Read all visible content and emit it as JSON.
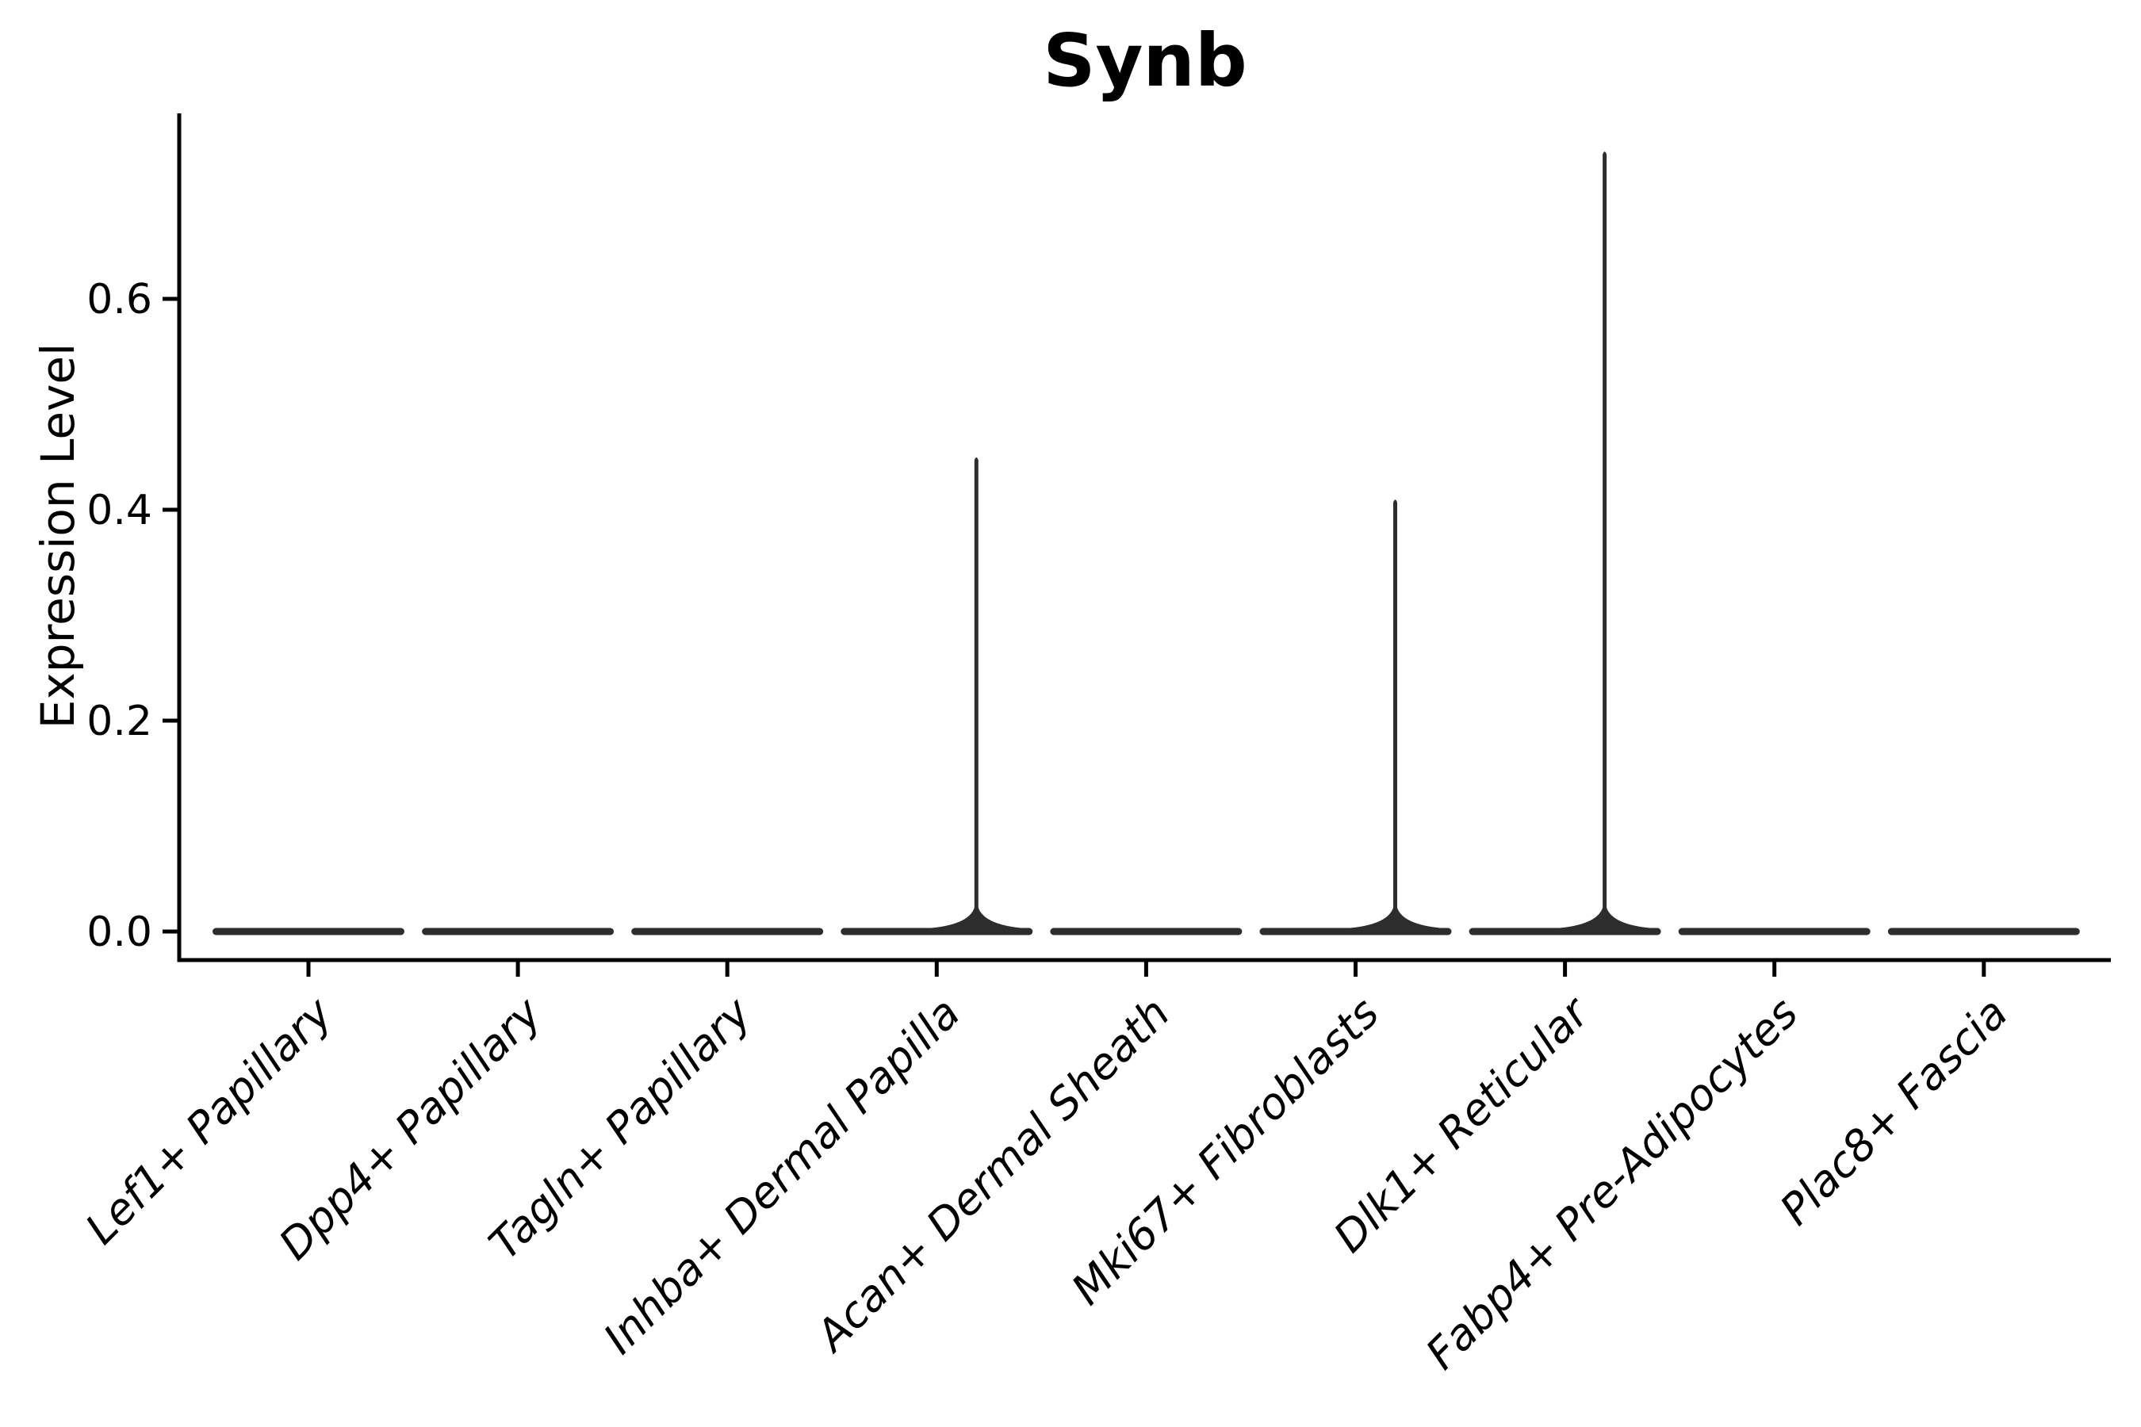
{
  "colors": {
    "background": "#ffffff",
    "violin": "#2d2d2d",
    "axis": "#000000",
    "text": "#000000"
  },
  "chart_data": {
    "type": "violin",
    "title": "Synb",
    "xlabel": "",
    "ylabel": "Expression Level",
    "categories": [
      "Lef1+ Papillary",
      "Dpp4+ Papillary",
      "Tagln+ Papillary",
      "Inhba+ Dermal Papilla",
      "Acan+ Dermal Sheath",
      "Mki67+ Fibroblasts",
      "Dlk1+ Reticular",
      "Fabp4+ Pre-Adipocytes",
      "Plac8+ Fascia"
    ],
    "yticks": [
      0.0,
      0.2,
      0.4,
      0.6
    ],
    "ylim": [
      0,
      0.78
    ],
    "grid": false,
    "legend": false,
    "violins": [
      {
        "category": "Lef1+ Papillary",
        "max_expression": 0
      },
      {
        "category": "Dpp4+ Papillary",
        "max_expression": 0
      },
      {
        "category": "Tagln+ Papillary",
        "max_expression": 0
      },
      {
        "category": "Inhba+ Dermal Papilla",
        "max_expression": 0.45
      },
      {
        "category": "Acan+ Dermal Sheath",
        "max_expression": 0
      },
      {
        "category": "Mki67+ Fibroblasts",
        "max_expression": 0.41
      },
      {
        "category": "Dlk1+ Reticular",
        "max_expression": 0.74
      },
      {
        "category": "Fabp4+ Pre-Adipocytes",
        "max_expression": 0
      },
      {
        "category": "Plac8+ Fascia",
        "max_expression": 0
      }
    ]
  }
}
